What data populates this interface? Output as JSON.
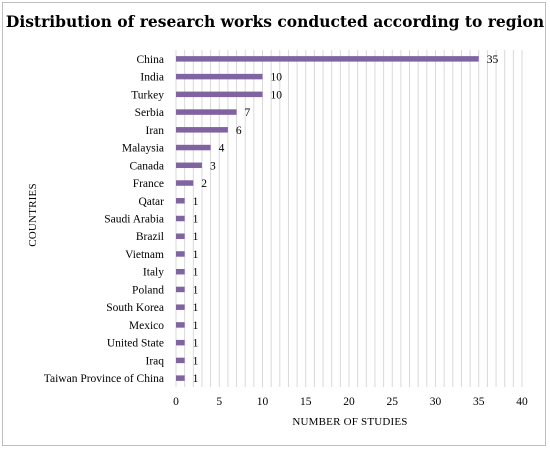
{
  "chart_data": {
    "type": "bar",
    "orientation": "horizontal",
    "title": "Distribution of research works conducted according to region",
    "xlabel": "NUMBER OF STUDIES",
    "ylabel": "COUNTRIES",
    "xlim": [
      0,
      40
    ],
    "xticks": [
      0,
      5,
      10,
      15,
      20,
      25,
      30,
      35,
      40
    ],
    "grid": true,
    "bar_color": "#8064a2",
    "categories": [
      "China",
      "India",
      "Turkey",
      "Serbia",
      "Iran",
      "Malaysia",
      "Canada",
      "France",
      "Qatar",
      "Saudi Arabia",
      "Brazil",
      "Vietnam",
      "Italy",
      "Poland",
      "South Korea",
      "Mexico",
      "United State",
      "Iraq",
      "Taiwan Province of China"
    ],
    "values": [
      35,
      10,
      10,
      7,
      6,
      4,
      3,
      2,
      1,
      1,
      1,
      1,
      1,
      1,
      1,
      1,
      1,
      1,
      1
    ]
  }
}
